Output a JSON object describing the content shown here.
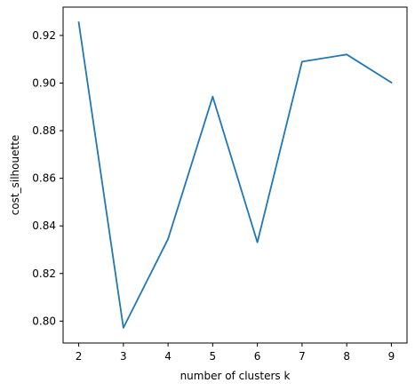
{
  "chart_data": {
    "type": "line",
    "x": [
      2,
      3,
      4,
      5,
      6,
      7,
      8,
      9
    ],
    "series": [
      {
        "values": [
          0.9255,
          0.7972,
          0.8345,
          0.8943,
          0.8331,
          0.909,
          0.912,
          0.9002
        ],
        "color": "#1f77b4"
      }
    ],
    "xticks": [
      "2",
      "3",
      "4",
      "5",
      "6",
      "7",
      "8",
      "9"
    ],
    "yticks": [
      "0.80",
      "0.82",
      "0.84",
      "0.86",
      "0.88",
      "0.90",
      "0.92"
    ],
    "xlabel": "number of clusters k",
    "ylabel": "cost_silhouette",
    "xlim": [
      1.65,
      9.35
    ],
    "ylim": [
      0.7908,
      0.9319
    ],
    "grid": false
  }
}
